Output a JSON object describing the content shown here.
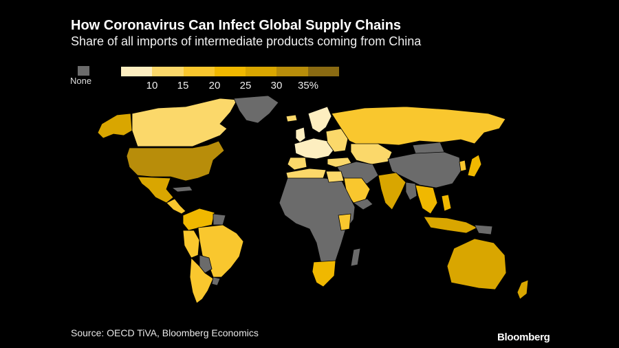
{
  "header": {
    "title": "How Coronavirus Can Infect Global Supply Chains",
    "subtitle": "Share of all imports of intermediate products coming from China"
  },
  "legend": {
    "none_label": "None",
    "none_color": "#6b6b6b",
    "swatches": [
      "#fdeec0",
      "#fbd86a",
      "#f9c72e",
      "#f0b800",
      "#d9a600",
      "#b88d0a",
      "#8a6a12"
    ],
    "ticks": [
      "10",
      "15",
      "20",
      "25",
      "30",
      "35%"
    ]
  },
  "footer": {
    "source": "Source: OECD TiVA, Bloomberg Economics",
    "logo": "Bloomberg"
  },
  "map_colors": {
    "none": "#6b6b6b",
    "c10": "#fdeec0",
    "c15": "#fbd86a",
    "c20": "#f9c72e",
    "c25": "#f0b800",
    "c30": "#d9a600",
    "c35": "#b88d0a"
  }
}
